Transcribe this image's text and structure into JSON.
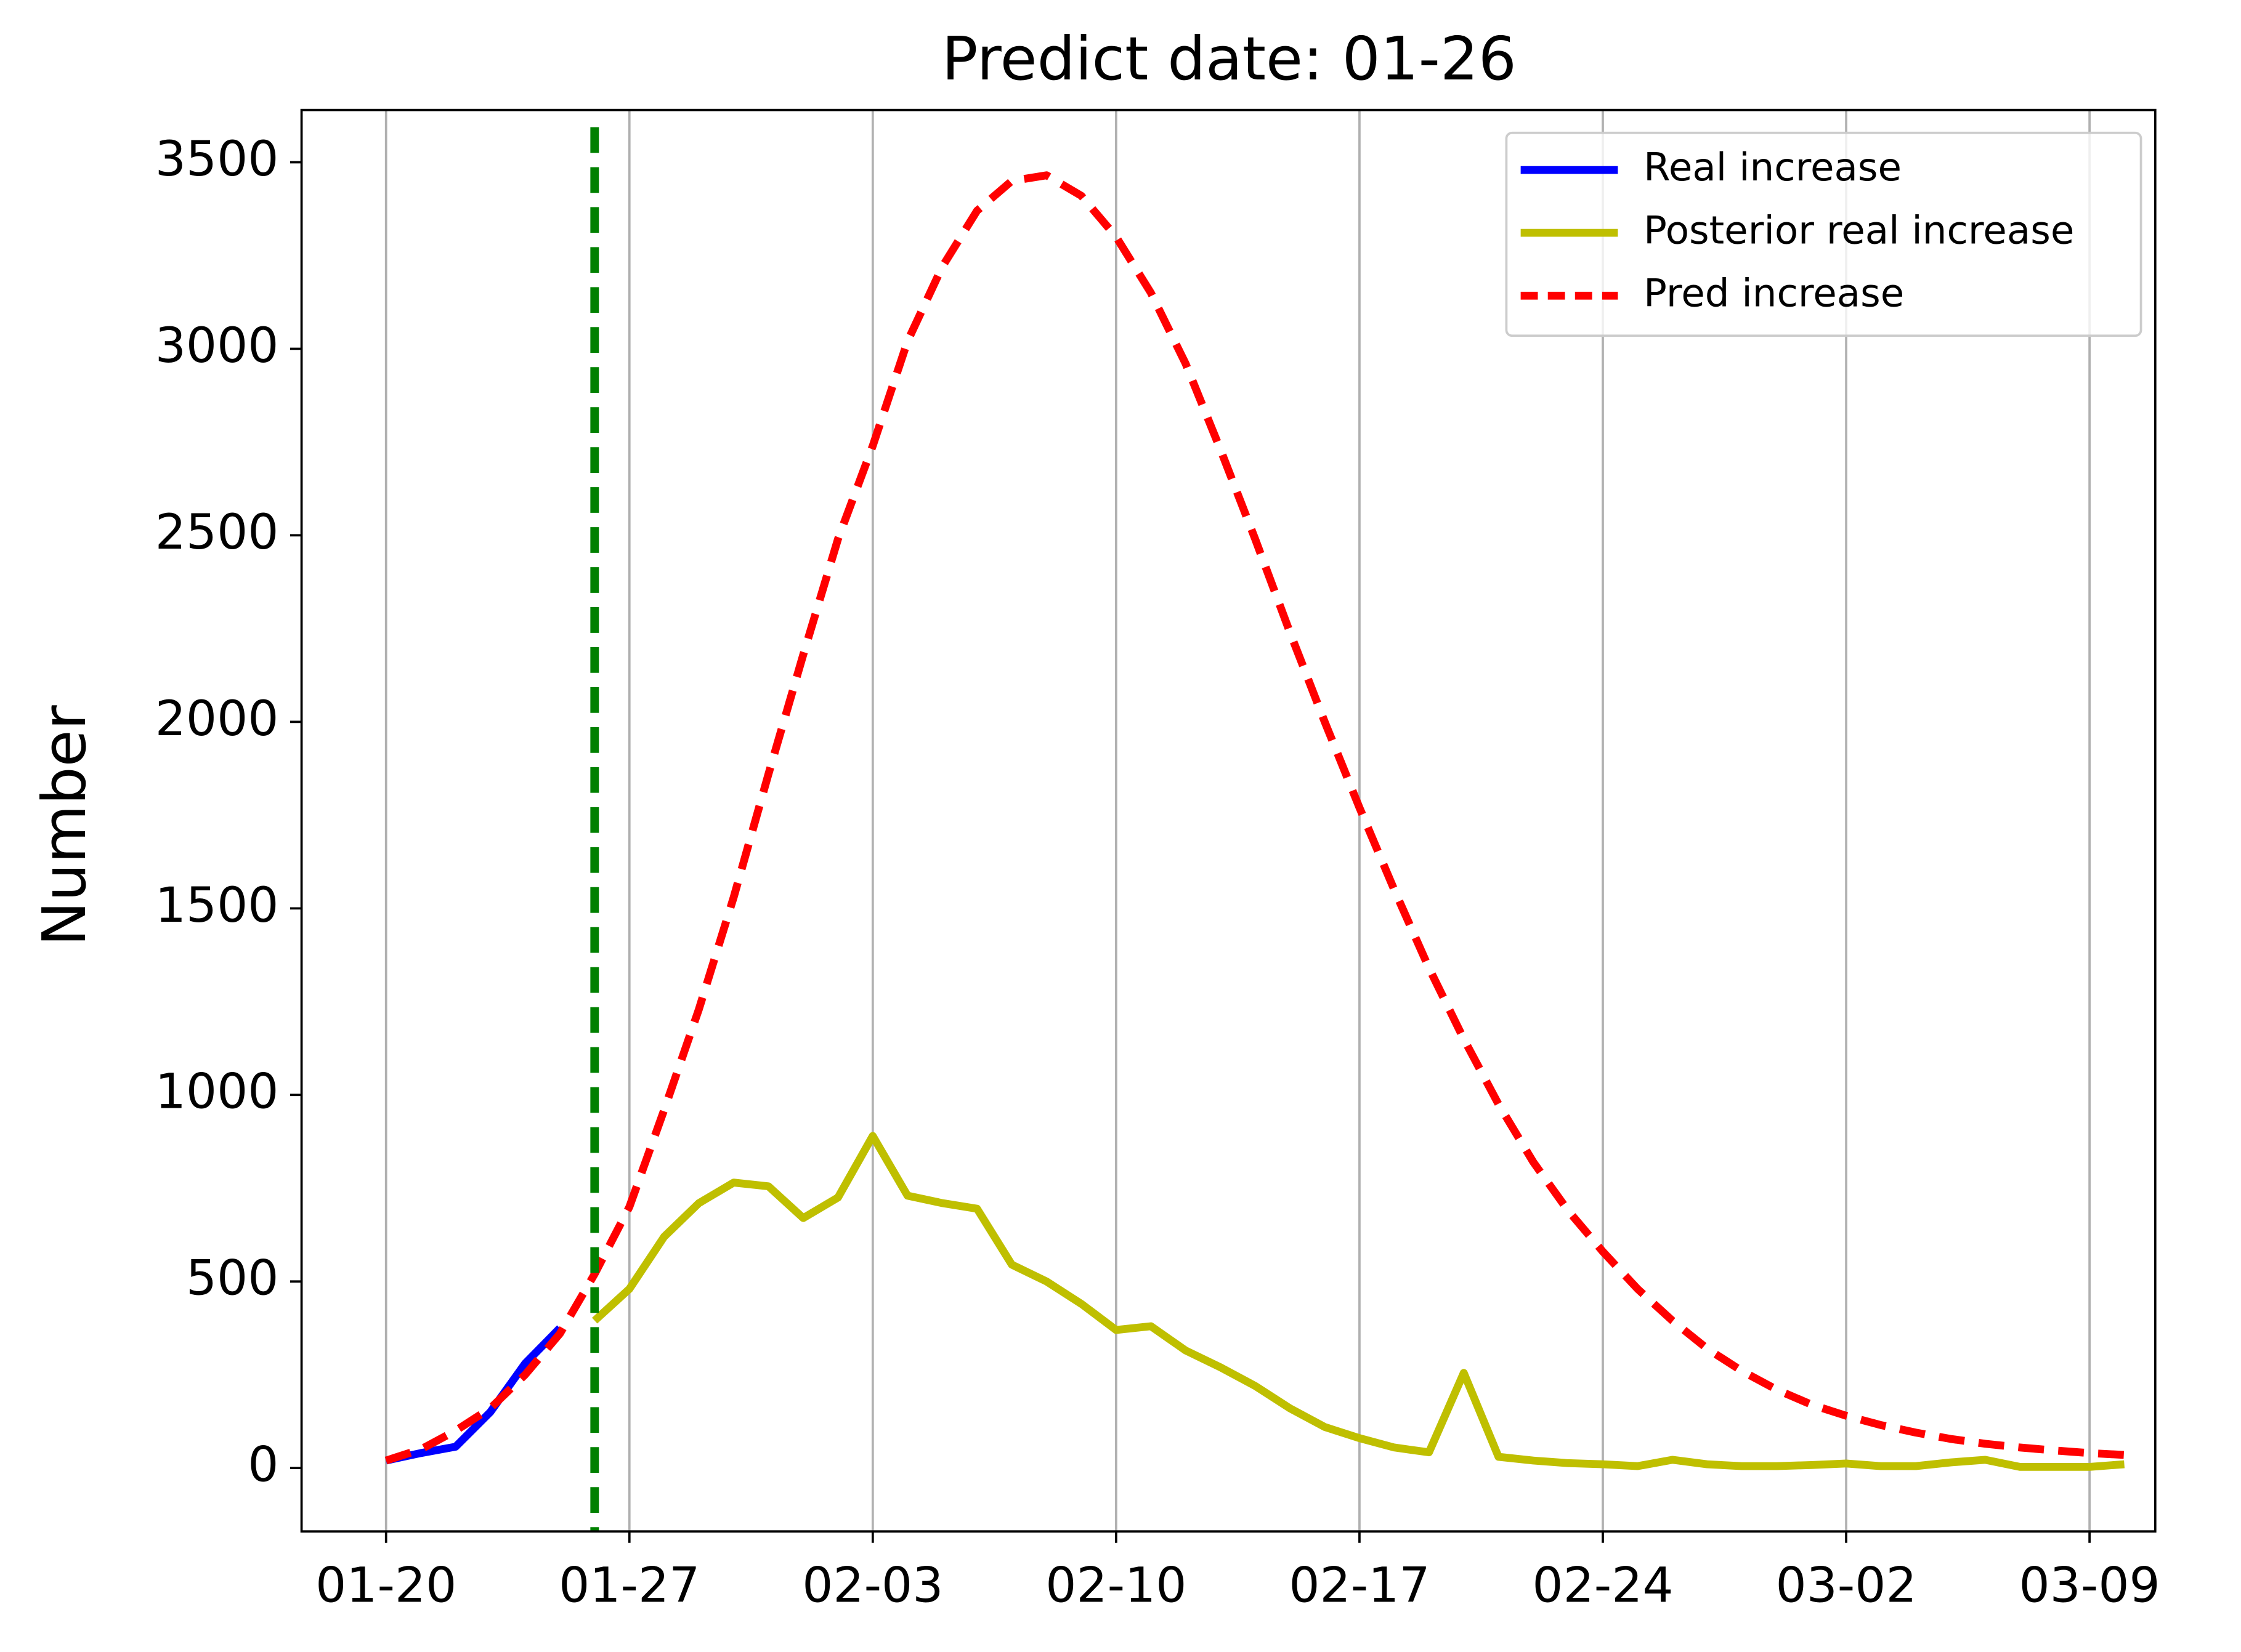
{
  "chart_data": {
    "type": "line",
    "title": "Predict date: 01-26",
    "y_label": "Number",
    "x": [
      "01-20",
      "01-21",
      "01-22",
      "01-23",
      "01-24",
      "01-25",
      "01-26",
      "01-27",
      "01-28",
      "01-29",
      "01-30",
      "01-31",
      "02-01",
      "02-02",
      "02-03",
      "02-04",
      "02-05",
      "02-06",
      "02-07",
      "02-08",
      "02-09",
      "02-10",
      "02-11",
      "02-12",
      "02-13",
      "02-14",
      "02-15",
      "02-16",
      "02-17",
      "02-18",
      "02-19",
      "02-20",
      "02-21",
      "02-22",
      "02-23",
      "02-24",
      "02-25",
      "02-26",
      "02-27",
      "02-28",
      "02-29",
      "03-01",
      "03-02",
      "03-03",
      "03-04",
      "03-05",
      "03-06",
      "03-07",
      "03-08",
      "03-09",
      "03-10"
    ],
    "xticks": [
      "01-20",
      "01-27",
      "02-03",
      "02-10",
      "02-17",
      "02-24",
      "03-02",
      "03-09"
    ],
    "ylim": [
      -170,
      3640
    ],
    "yticks": [
      0,
      500,
      1000,
      1500,
      2000,
      2500,
      3000,
      3500
    ],
    "grid": "x",
    "legend": "upper right",
    "vline": {
      "x": "01-26",
      "color": "#008000",
      "style": "dashed"
    },
    "series": [
      {
        "name": "Real increase",
        "color": "#0000ff",
        "style": "solid",
        "values": [
          20,
          40,
          57,
          150,
          280,
          375,
          null,
          null,
          null,
          null,
          null,
          null,
          null,
          null,
          null,
          null,
          null,
          null,
          null,
          null,
          null,
          null,
          null,
          null,
          null,
          null,
          null,
          null,
          null,
          null,
          null,
          null,
          null,
          null,
          null,
          null,
          null,
          null,
          null,
          null,
          null,
          null,
          null,
          null,
          null,
          null,
          null,
          null,
          null,
          null,
          null
        ]
      },
      {
        "name": "Posterior real increase",
        "color": "#bfbf00",
        "style": "solid",
        "values": [
          null,
          null,
          null,
          null,
          null,
          null,
          395,
          480,
          620,
          710,
          765,
          755,
          670,
          725,
          890,
          730,
          710,
          695,
          545,
          500,
          440,
          370,
          380,
          315,
          270,
          220,
          160,
          110,
          80,
          55,
          42,
          255,
          30,
          20,
          13,
          10,
          5,
          22,
          10,
          5,
          5,
          8,
          12,
          5,
          5,
          15,
          22,
          3,
          3,
          3,
          10
        ]
      },
      {
        "name": "Pred increase",
        "color": "#ff0000",
        "style": "dashed",
        "values": [
          20,
          50,
          100,
          160,
          250,
          360,
          520,
          700,
          960,
          1230,
          1530,
          1860,
          2180,
          2490,
          2740,
          3020,
          3220,
          3370,
          3450,
          3465,
          3410,
          3300,
          3150,
          2960,
          2730,
          2490,
          2240,
          2000,
          1770,
          1550,
          1340,
          1150,
          975,
          820,
          690,
          580,
          480,
          395,
          320,
          260,
          210,
          170,
          140,
          115,
          95,
          78,
          65,
          55,
          47,
          40,
          35
        ]
      }
    ]
  }
}
